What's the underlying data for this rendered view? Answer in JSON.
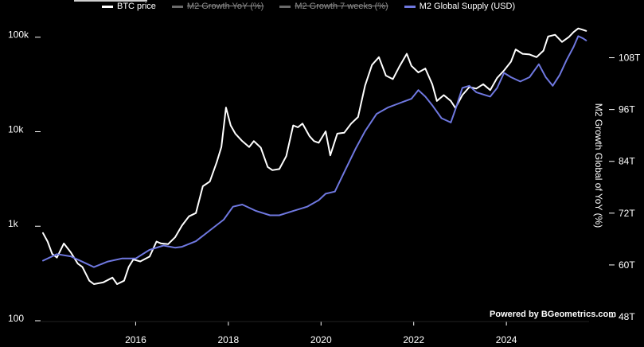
{
  "legend": {
    "items": [
      {
        "label": "BTC price",
        "color": "#ffffff",
        "enabled": true
      },
      {
        "label": "M2 Growth YoY (%)",
        "color": "#6b6b6b",
        "enabled": false
      },
      {
        "label": "M2 Growth 7 weeks (%)",
        "color": "#6b6b6b",
        "enabled": false
      },
      {
        "label": "M2 Global Supply (USD)",
        "color": "#6f78e0",
        "enabled": true
      }
    ]
  },
  "credit": "Powered by BGeometrics.com",
  "colors": {
    "background": "#000000",
    "btc": "#ffffff",
    "m2": "#6f78e0",
    "text": "#ffffff"
  },
  "chart_data": {
    "type": "line",
    "x_ticks": [
      "2016",
      "2018",
      "2020",
      "2022",
      "2024"
    ],
    "x_range": [
      2014.0,
      2025.75
    ],
    "left_axis": {
      "scale": "log",
      "ticks": [
        "100",
        "1k",
        "10k",
        "100k"
      ],
      "tick_values": [
        100,
        1000,
        10000,
        100000
      ],
      "range": [
        100,
        200000
      ]
    },
    "right_axis": {
      "label": "M2 Growth Global of YoY (%)",
      "ticks": [
        "48T",
        "60T",
        "72T",
        "84T",
        "96T",
        "108T"
      ],
      "tick_values": [
        48,
        60,
        72,
        84,
        96,
        108
      ],
      "range": [
        48,
        114
      ]
    },
    "grid": false,
    "legend_position": "top",
    "series": [
      {
        "name": "BTC price",
        "axis": "left",
        "color": "#ffffff",
        "points": [
          [
            2014.0,
            800
          ],
          [
            2014.1,
            650
          ],
          [
            2014.2,
            480
          ],
          [
            2014.3,
            440
          ],
          [
            2014.45,
            620
          ],
          [
            2014.6,
            500
          ],
          [
            2014.75,
            380
          ],
          [
            2014.85,
            350
          ],
          [
            2015.0,
            250
          ],
          [
            2015.1,
            230
          ],
          [
            2015.3,
            240
          ],
          [
            2015.5,
            270
          ],
          [
            2015.6,
            230
          ],
          [
            2015.75,
            250
          ],
          [
            2015.85,
            350
          ],
          [
            2015.95,
            420
          ],
          [
            2016.1,
            400
          ],
          [
            2016.3,
            450
          ],
          [
            2016.45,
            650
          ],
          [
            2016.55,
            620
          ],
          [
            2016.7,
            610
          ],
          [
            2016.85,
            720
          ],
          [
            2017.0,
            960
          ],
          [
            2017.15,
            1200
          ],
          [
            2017.3,
            1300
          ],
          [
            2017.45,
            2500
          ],
          [
            2017.6,
            2800
          ],
          [
            2017.75,
            4500
          ],
          [
            2017.85,
            6500
          ],
          [
            2017.95,
            17000
          ],
          [
            2018.05,
            11000
          ],
          [
            2018.15,
            9000
          ],
          [
            2018.3,
            7500
          ],
          [
            2018.45,
            6500
          ],
          [
            2018.55,
            7500
          ],
          [
            2018.7,
            6400
          ],
          [
            2018.85,
            4000
          ],
          [
            2018.95,
            3700
          ],
          [
            2019.1,
            3800
          ],
          [
            2019.25,
            5200
          ],
          [
            2019.4,
            11000
          ],
          [
            2019.5,
            10500
          ],
          [
            2019.6,
            11500
          ],
          [
            2019.75,
            8500
          ],
          [
            2019.85,
            7500
          ],
          [
            2019.95,
            7200
          ],
          [
            2020.1,
            9500
          ],
          [
            2020.2,
            5300
          ],
          [
            2020.35,
            9000
          ],
          [
            2020.5,
            9200
          ],
          [
            2020.65,
            11500
          ],
          [
            2020.8,
            13500
          ],
          [
            2020.95,
            29000
          ],
          [
            2021.1,
            48000
          ],
          [
            2021.25,
            58000
          ],
          [
            2021.4,
            37000
          ],
          [
            2021.55,
            34000
          ],
          [
            2021.7,
            47000
          ],
          [
            2021.85,
            63000
          ],
          [
            2021.95,
            47000
          ],
          [
            2022.1,
            40000
          ],
          [
            2022.25,
            44000
          ],
          [
            2022.4,
            30000
          ],
          [
            2022.5,
            20000
          ],
          [
            2022.65,
            23000
          ],
          [
            2022.8,
            20000
          ],
          [
            2022.9,
            16800
          ],
          [
            2023.05,
            23000
          ],
          [
            2023.2,
            28000
          ],
          [
            2023.35,
            27000
          ],
          [
            2023.5,
            30000
          ],
          [
            2023.65,
            26000
          ],
          [
            2023.8,
            35000
          ],
          [
            2023.95,
            42000
          ],
          [
            2024.1,
            52000
          ],
          [
            2024.2,
            70000
          ],
          [
            2024.35,
            63000
          ],
          [
            2024.5,
            62000
          ],
          [
            2024.65,
            58000
          ],
          [
            2024.8,
            68000
          ],
          [
            2024.9,
            96000
          ],
          [
            2025.05,
            100000
          ],
          [
            2025.2,
            84000
          ],
          [
            2025.35,
            95000
          ],
          [
            2025.45,
            107000
          ],
          [
            2025.55,
            117000
          ],
          [
            2025.65,
            113000
          ],
          [
            2025.72,
            110000
          ]
        ]
      },
      {
        "name": "M2 Global Supply (USD)",
        "axis": "right",
        "color": "#6f78e0",
        "points": [
          [
            2014.0,
            61.0
          ],
          [
            2014.3,
            62.5
          ],
          [
            2014.6,
            62.0
          ],
          [
            2014.9,
            60.5
          ],
          [
            2015.1,
            59.5
          ],
          [
            2015.4,
            60.8
          ],
          [
            2015.7,
            61.5
          ],
          [
            2016.0,
            61.5
          ],
          [
            2016.3,
            63.5
          ],
          [
            2016.6,
            64.5
          ],
          [
            2016.85,
            64.0
          ],
          [
            2017.0,
            64.2
          ],
          [
            2017.3,
            65.5
          ],
          [
            2017.6,
            68.0
          ],
          [
            2017.9,
            70.5
          ],
          [
            2018.1,
            73.5
          ],
          [
            2018.3,
            74.0
          ],
          [
            2018.6,
            72.5
          ],
          [
            2018.9,
            71.5
          ],
          [
            2019.1,
            71.5
          ],
          [
            2019.4,
            72.5
          ],
          [
            2019.7,
            73.5
          ],
          [
            2019.95,
            75.0
          ],
          [
            2020.1,
            76.5
          ],
          [
            2020.3,
            77.0
          ],
          [
            2020.5,
            81.5
          ],
          [
            2020.75,
            87.0
          ],
          [
            2020.95,
            91.0
          ],
          [
            2021.2,
            95.0
          ],
          [
            2021.45,
            96.5
          ],
          [
            2021.7,
            97.5
          ],
          [
            2021.95,
            98.5
          ],
          [
            2022.1,
            100.5
          ],
          [
            2022.25,
            99.0
          ],
          [
            2022.4,
            97.0
          ],
          [
            2022.6,
            94.0
          ],
          [
            2022.8,
            93.0
          ],
          [
            2022.9,
            96.0
          ],
          [
            2023.05,
            101.0
          ],
          [
            2023.2,
            101.5
          ],
          [
            2023.35,
            100.0
          ],
          [
            2023.5,
            99.5
          ],
          [
            2023.65,
            99.0
          ],
          [
            2023.8,
            101.0
          ],
          [
            2023.95,
            104.5
          ],
          [
            2024.1,
            103.5
          ],
          [
            2024.3,
            102.5
          ],
          [
            2024.5,
            103.5
          ],
          [
            2024.7,
            106.5
          ],
          [
            2024.85,
            103.5
          ],
          [
            2025.0,
            101.5
          ],
          [
            2025.15,
            104.0
          ],
          [
            2025.3,
            107.5
          ],
          [
            2025.45,
            110.5
          ],
          [
            2025.55,
            113.0
          ],
          [
            2025.65,
            112.5
          ],
          [
            2025.72,
            112.0
          ]
        ]
      }
    ]
  }
}
